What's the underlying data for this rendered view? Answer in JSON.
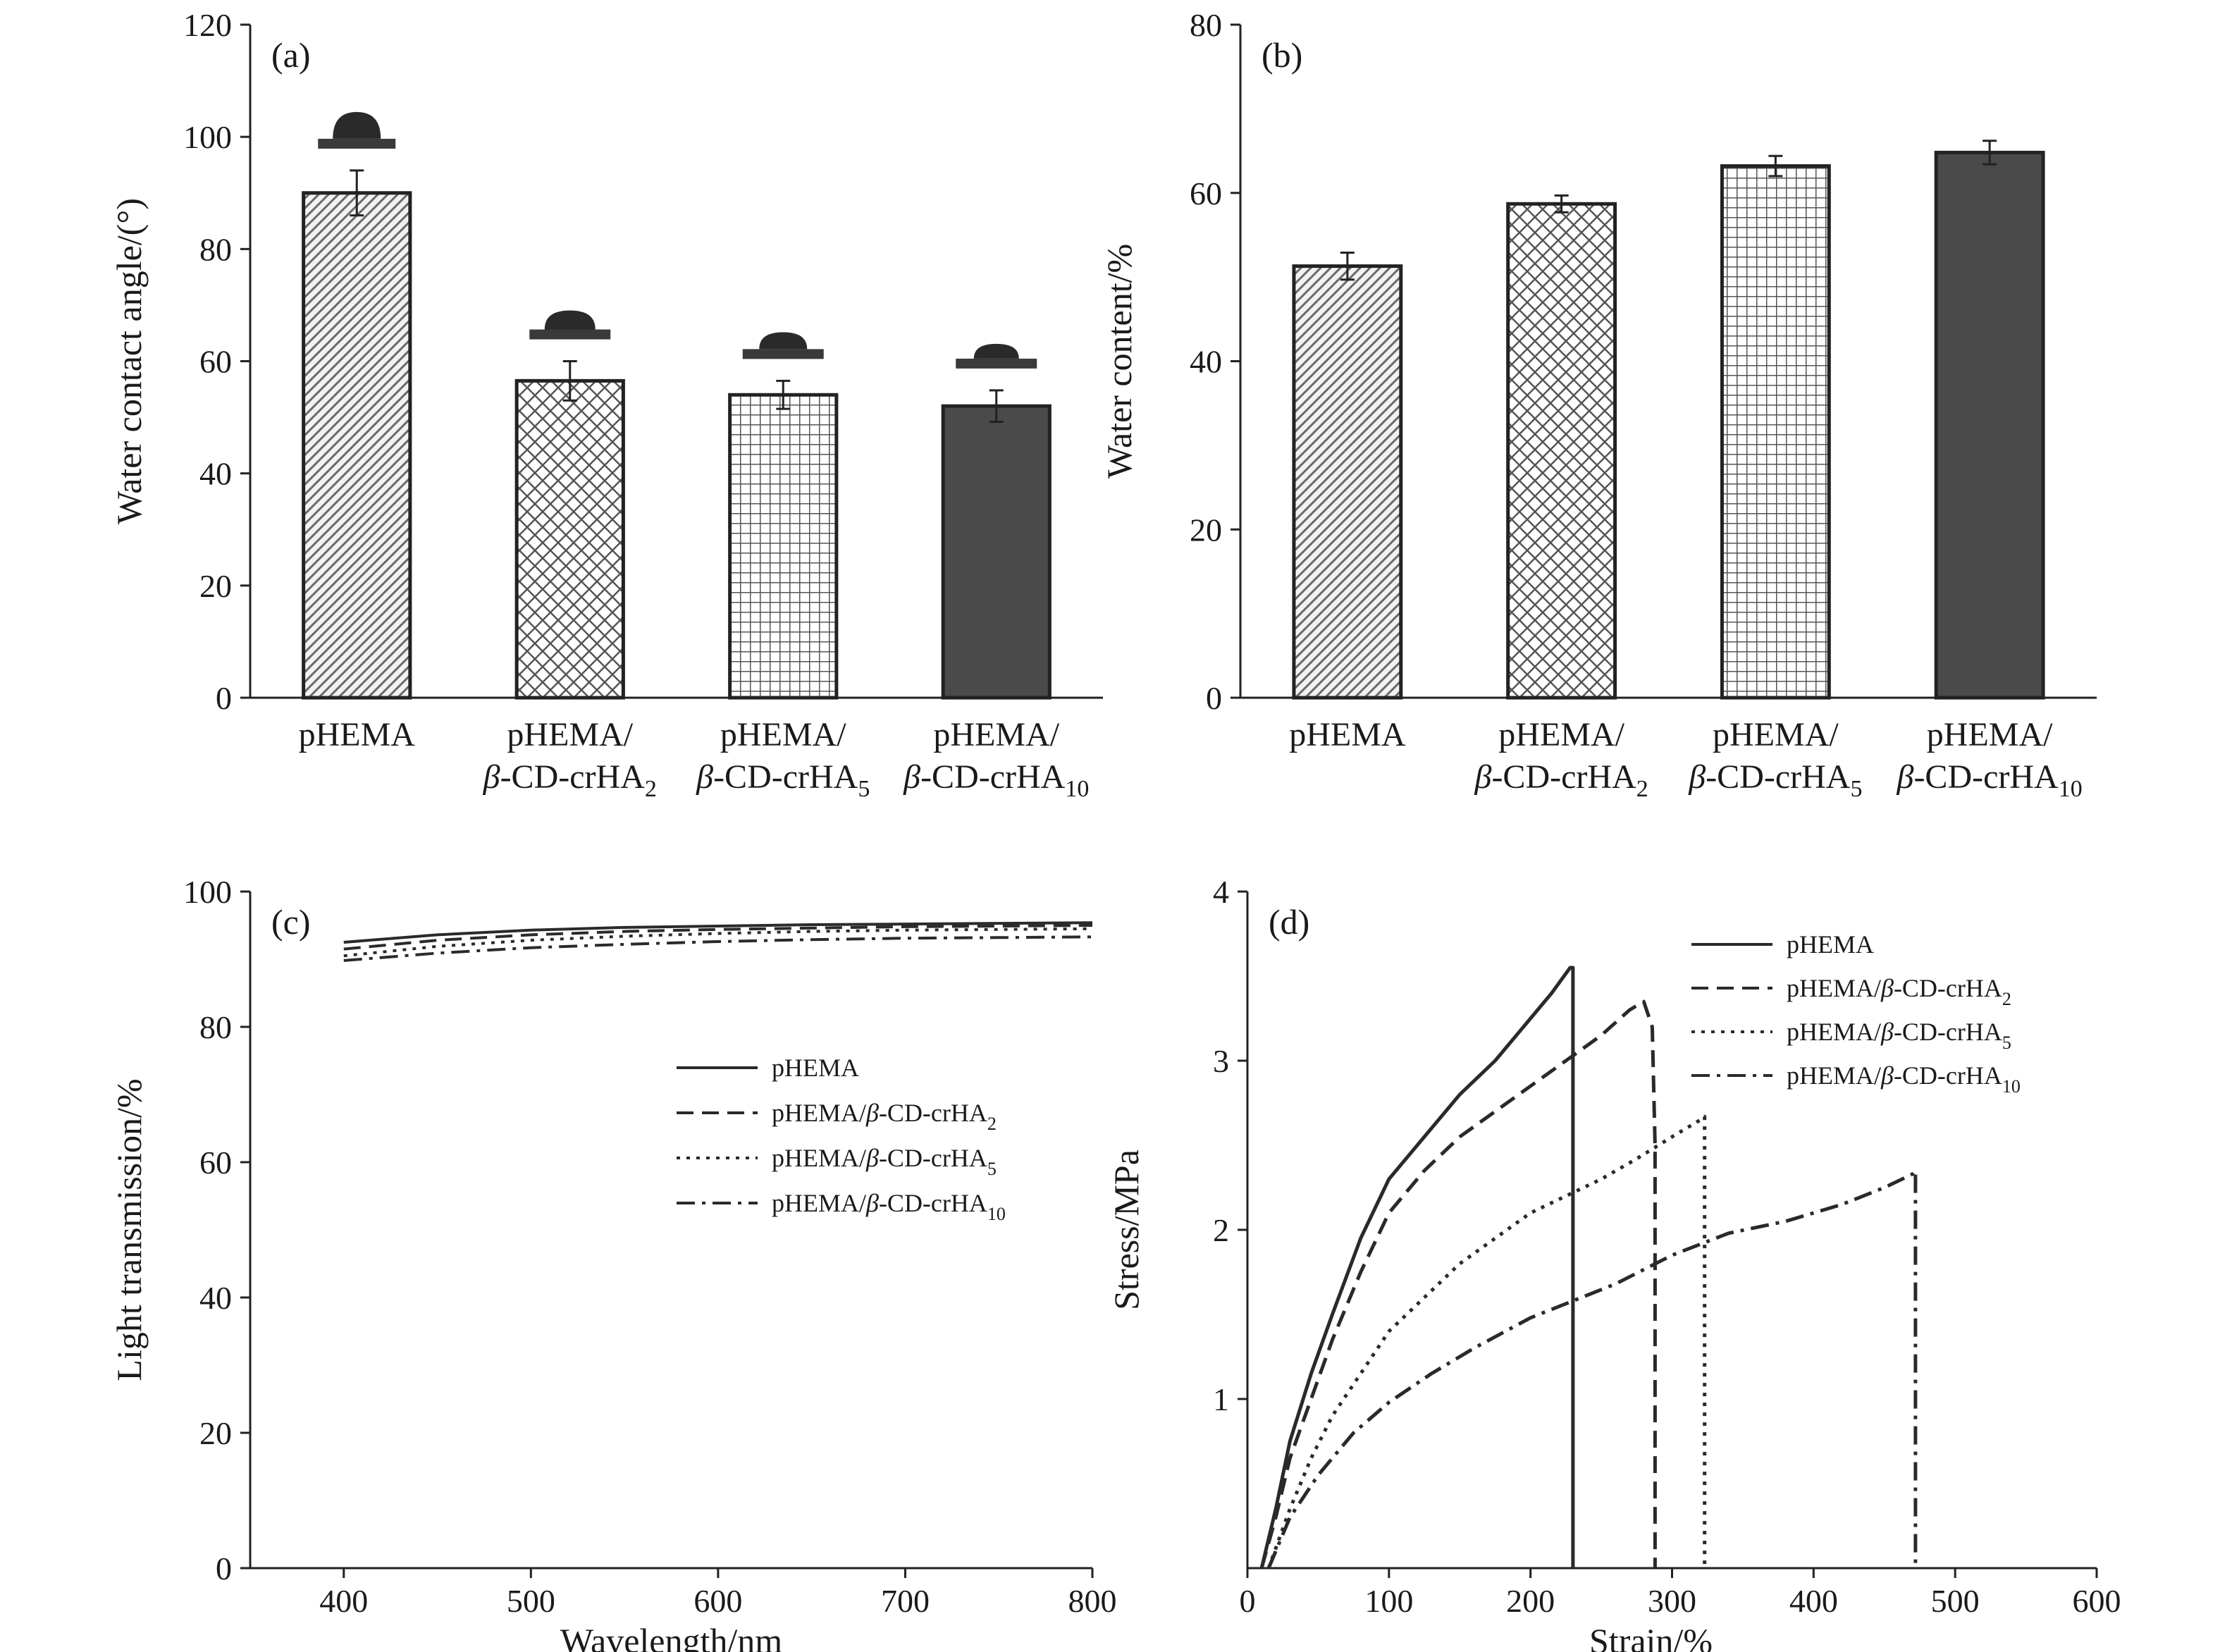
{
  "chart_data": [
    {
      "panel": "(a)",
      "type": "bar",
      "ylabel": "Water contact angle/(°)",
      "ylim": [
        0,
        120
      ],
      "yticks": [
        0,
        20,
        40,
        60,
        80,
        100,
        120
      ],
      "categories": [
        {
          "line1": "pHEMA",
          "line2": "",
          "sub": ""
        },
        {
          "line1": "pHEMA/",
          "line2": "β-CD-crHA",
          "sub": "2"
        },
        {
          "line1": "pHEMA/",
          "line2": "β-CD-crHA",
          "sub": "5"
        },
        {
          "line1": "pHEMA/",
          "line2": "β-CD-crHA",
          "sub": "10"
        }
      ],
      "values": [
        90,
        56.5,
        54,
        52
      ],
      "errors": [
        4,
        3.5,
        2.5,
        2.8
      ],
      "fills": [
        "diag",
        "diamond",
        "grid",
        "solid"
      ],
      "droplets": true
    },
    {
      "panel": "(b)",
      "type": "bar",
      "ylabel": "Water content/%",
      "ylim": [
        0,
        80
      ],
      "yticks": [
        0,
        20,
        40,
        60,
        80
      ],
      "categories": [
        {
          "line1": "pHEMA",
          "line2": "",
          "sub": ""
        },
        {
          "line1": "pHEMA/",
          "line2": "β-CD-crHA",
          "sub": "2"
        },
        {
          "line1": "pHEMA/",
          "line2": "β-CD-crHA",
          "sub": "5"
        },
        {
          "line1": "pHEMA/",
          "line2": "β-CD-crHA",
          "sub": "10"
        }
      ],
      "values": [
        51.3,
        58.7,
        63.2,
        64.8
      ],
      "errors": [
        1.6,
        1.0,
        1.2,
        1.4
      ],
      "fills": [
        "diag",
        "diamond",
        "grid",
        "solid"
      ],
      "droplets": false
    },
    {
      "panel": "(c)",
      "type": "line",
      "xlabel": "Wavelength/nm",
      "ylabel": "Light transmission/%",
      "xlim": [
        350,
        800
      ],
      "ylim": [
        0,
        100
      ],
      "xticks": [
        400,
        500,
        600,
        700,
        800
      ],
      "yticks": [
        0,
        20,
        40,
        60,
        80,
        100
      ],
      "legend_position": "center-right",
      "series": [
        {
          "name": "pHEMA",
          "sub": "",
          "dash": "solid",
          "x": [
            400,
            450,
            500,
            550,
            600,
            650,
            700,
            750,
            800
          ],
          "y": [
            92.5,
            93.6,
            94.3,
            94.7,
            94.9,
            95.1,
            95.2,
            95.3,
            95.4
          ]
        },
        {
          "name": "pHEMA/β-CD-crHA",
          "sub": "2",
          "dash": "dash",
          "x": [
            400,
            450,
            500,
            550,
            600,
            650,
            700,
            750,
            800
          ],
          "y": [
            91.5,
            92.8,
            93.6,
            94.1,
            94.4,
            94.6,
            94.8,
            94.9,
            95.0
          ]
        },
        {
          "name": "pHEMA/β-CD-crHA",
          "sub": "5",
          "dash": "dot",
          "x": [
            400,
            450,
            500,
            550,
            600,
            650,
            700,
            750,
            800
          ],
          "y": [
            90.5,
            91.9,
            92.8,
            93.4,
            93.8,
            94.1,
            94.3,
            94.4,
            94.5
          ]
        },
        {
          "name": "pHEMA/β-CD-crHA",
          "sub": "10",
          "dash": "dashdot",
          "x": [
            400,
            450,
            500,
            550,
            600,
            650,
            700,
            750,
            800
          ],
          "y": [
            89.8,
            90.9,
            91.7,
            92.2,
            92.6,
            92.9,
            93.1,
            93.2,
            93.3
          ]
        }
      ]
    },
    {
      "panel": "(d)",
      "type": "line",
      "xlabel": "Strain/%",
      "ylabel": "Stress/MPa",
      "xlim": [
        0,
        600
      ],
      "ylim": [
        0,
        4
      ],
      "xticks": [
        0,
        100,
        200,
        300,
        400,
        500,
        600
      ],
      "yticks": [
        1,
        2,
        3,
        4
      ],
      "legend_position": "top-center",
      "series": [
        {
          "name": "pHEMA",
          "sub": "",
          "dash": "solid",
          "x": [
            10,
            20,
            30,
            45,
            60,
            80,
            100,
            125,
            150,
            175,
            200,
            215,
            228,
            230,
            230
          ],
          "y": [
            0,
            0.35,
            0.75,
            1.15,
            1.5,
            1.95,
            2.3,
            2.55,
            2.8,
            3.0,
            3.25,
            3.4,
            3.55,
            3.55,
            0
          ]
        },
        {
          "name": "pHEMA/β-CD-crHA",
          "sub": "2",
          "dash": "dash",
          "x": [
            10,
            20,
            30,
            45,
            60,
            80,
            100,
            125,
            150,
            175,
            200,
            225,
            250,
            270,
            280,
            286,
            288,
            288
          ],
          "y": [
            0,
            0.3,
            0.65,
            1.0,
            1.35,
            1.75,
            2.1,
            2.35,
            2.55,
            2.7,
            2.85,
            3.0,
            3.15,
            3.3,
            3.35,
            3.2,
            2.5,
            0
          ]
        },
        {
          "name": "pHEMA/β-CD-crHA",
          "sub": "5",
          "dash": "dot",
          "x": [
            15,
            30,
            45,
            60,
            80,
            100,
            125,
            150,
            175,
            200,
            225,
            250,
            275,
            300,
            320,
            323,
            323
          ],
          "y": [
            0,
            0.35,
            0.65,
            0.9,
            1.15,
            1.4,
            1.6,
            1.8,
            1.95,
            2.1,
            2.2,
            2.3,
            2.42,
            2.55,
            2.65,
            2.67,
            0
          ]
        },
        {
          "name": "pHEMA/β-CD-crHA",
          "sub": "10",
          "dash": "dashdot",
          "x": [
            15,
            30,
            50,
            75,
            100,
            130,
            160,
            200,
            230,
            260,
            300,
            340,
            380,
            420,
            450,
            470,
            472,
            472
          ],
          "y": [
            0,
            0.3,
            0.55,
            0.8,
            0.98,
            1.15,
            1.3,
            1.48,
            1.58,
            1.68,
            1.85,
            1.98,
            2.05,
            2.15,
            2.25,
            2.33,
            2.35,
            0
          ]
        }
      ]
    }
  ]
}
